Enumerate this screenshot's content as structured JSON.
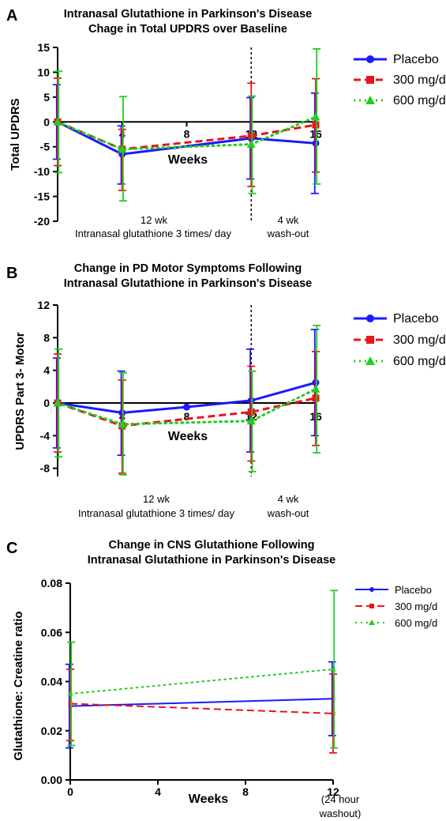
{
  "colors": {
    "placebo": "#1a1aff",
    "mg300": "#e8141a",
    "mg600": "#22cc22"
  },
  "chart_data": [
    {
      "type": "line",
      "panel": "A",
      "title": [
        "Intranasal Glutathione in Parkinson's Disease",
        "Chage in Total UPDRS over Baseline"
      ],
      "xlabel": "Weeks",
      "ylabel": "Total UPDRS",
      "ylim": [
        -20,
        15
      ],
      "xlim": [
        0,
        16
      ],
      "yticks": [
        "15",
        "10",
        "5",
        "0",
        "-5",
        "-10",
        "-15",
        "-20"
      ],
      "xticks": [
        "4",
        "8",
        "12",
        "16"
      ],
      "annotations": [
        "12 wk",
        "Intranasal glutathione 3 times/ day",
        "4 wk",
        "wash-out"
      ],
      "legend_position": "right",
      "series": [
        {
          "name": "Placebo",
          "x": [
            0,
            4,
            12,
            16
          ],
          "y": [
            0,
            -6.5,
            -3.3,
            -4.3
          ],
          "err_high": [
            7.5,
            -0.8,
            4.9,
            5.8
          ],
          "err_low": [
            -7.5,
            -12.5,
            -11.5,
            -14.4
          ]
        },
        {
          "name": "300 mg/d",
          "x": [
            0,
            4,
            12,
            16
          ],
          "y": [
            0,
            -5.5,
            -2.8,
            -0.6
          ],
          "err_high": [
            8.8,
            -1.5,
            7.8,
            8.7
          ],
          "err_low": [
            -8.8,
            -13.8,
            -13.0,
            -10.1
          ]
        },
        {
          "name": "600 mg/d",
          "x": [
            0,
            4,
            12,
            16
          ],
          "y": [
            0,
            -5.5,
            -4.5,
            1.0
          ],
          "err_high": [
            10.2,
            5.1,
            5.2,
            14.7
          ],
          "err_low": [
            -10.2,
            -15.9,
            -14.4,
            -12.5
          ]
        }
      ]
    },
    {
      "type": "line",
      "panel": "B",
      "title": [
        "Change in PD Motor Symptoms Following",
        "Intranasal Glutathione in Parkinson's Disease"
      ],
      "xlabel": "Weeks",
      "ylabel": "UPDRS Part 3- Motor",
      "ylim": [
        -9,
        12
      ],
      "xlim": [
        0,
        16
      ],
      "yticks": [
        "12",
        "8",
        "4",
        "0",
        "-4",
        "-8"
      ],
      "xticks": [
        "4",
        "8",
        "12",
        "16"
      ],
      "annotations": [
        "12 wk",
        "Intranasal glutathione 3 times/ day",
        "4 wk",
        "wash-out"
      ],
      "legend_position": "right",
      "series": [
        {
          "name": "Placebo",
          "x": [
            0,
            4,
            8,
            12,
            16
          ],
          "y": [
            0,
            -1.2,
            -0.5,
            0.3,
            2.5
          ],
          "err_high": [
            5.5,
            3.9,
            null,
            6.6,
            9.0
          ],
          "err_low": [
            -5.5,
            -6.4,
            null,
            -6.0,
            -4.0
          ]
        },
        {
          "name": "300 mg/d",
          "x": [
            0,
            4,
            12,
            16
          ],
          "y": [
            0,
            -2.8,
            -1.1,
            0.6
          ],
          "err_high": [
            6.0,
            2.8,
            4.5,
            6.3
          ],
          "err_low": [
            -6.0,
            -8.6,
            -7.1,
            -5.2
          ]
        },
        {
          "name": "600 mg/d",
          "x": [
            0,
            4,
            12,
            16
          ],
          "y": [
            0,
            -2.6,
            -2.2,
            1.7
          ],
          "err_high": [
            6.6,
            3.7,
            3.9,
            9.5
          ],
          "err_low": [
            -6.6,
            -8.8,
            -8.4,
            -6.1
          ]
        }
      ]
    },
    {
      "type": "line",
      "panel": "C",
      "title": [
        "Change in CNS Glutathione Following",
        "Intranasal Glutathione in Parkinson's Disease"
      ],
      "xlabel": "Weeks",
      "ylabel": "Glutathione: Creatine ratio",
      "ylim": [
        0,
        0.08
      ],
      "xlim": [
        0,
        12
      ],
      "yticks": [
        "0.08",
        "0.06",
        "0.04",
        "0.02",
        "0.00"
      ],
      "xticks": [
        "0",
        "4",
        "8",
        "12"
      ],
      "annotations": [
        "(24 hour",
        "washout)"
      ],
      "legend_position": "top-right",
      "series": [
        {
          "name": "Placebo",
          "x": [
            0,
            12
          ],
          "y": [
            0.03,
            0.033
          ],
          "err_high": [
            0.047,
            0.048
          ],
          "err_low": [
            0.013,
            0.018
          ]
        },
        {
          "name": "300 mg/d",
          "x": [
            0,
            12
          ],
          "y": [
            0.031,
            0.027
          ],
          "err_high": [
            0.045,
            0.043
          ],
          "err_low": [
            0.016,
            0.011
          ]
        },
        {
          "name": "600 mg/d",
          "x": [
            0,
            12
          ],
          "y": [
            0.035,
            0.045
          ],
          "err_high": [
            0.056,
            0.077
          ],
          "err_low": [
            0.014,
            0.013
          ]
        }
      ]
    }
  ]
}
